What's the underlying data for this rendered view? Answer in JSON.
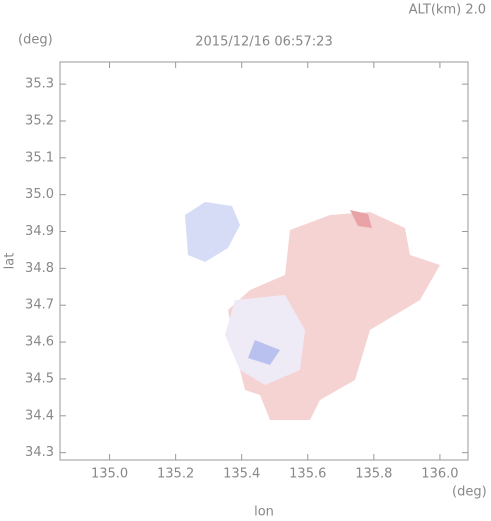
{
  "chart_data": {
    "type": "map",
    "title": "2015/12/16 06:57:23",
    "annotation": "ALT(km) 2.0",
    "x_label": "lon",
    "y_label": "lat",
    "x_unit": "(deg)",
    "y_unit": "(deg)",
    "xlim": [
      134.85,
      136.085
    ],
    "ylim": [
      34.28,
      35.36
    ],
    "xticks": [
      {
        "value": 135,
        "label": "135.0"
      },
      135.2,
      135.4,
      135.6,
      135.8,
      {
        "value": 136,
        "label": "136.0"
      }
    ],
    "yticks": [
      34.3,
      34.4,
      34.5,
      34.6,
      34.7,
      34.8,
      34.9,
      {
        "value": 35,
        "label": "35.0"
      },
      35.1,
      35.2,
      35.3
    ]
  }
}
